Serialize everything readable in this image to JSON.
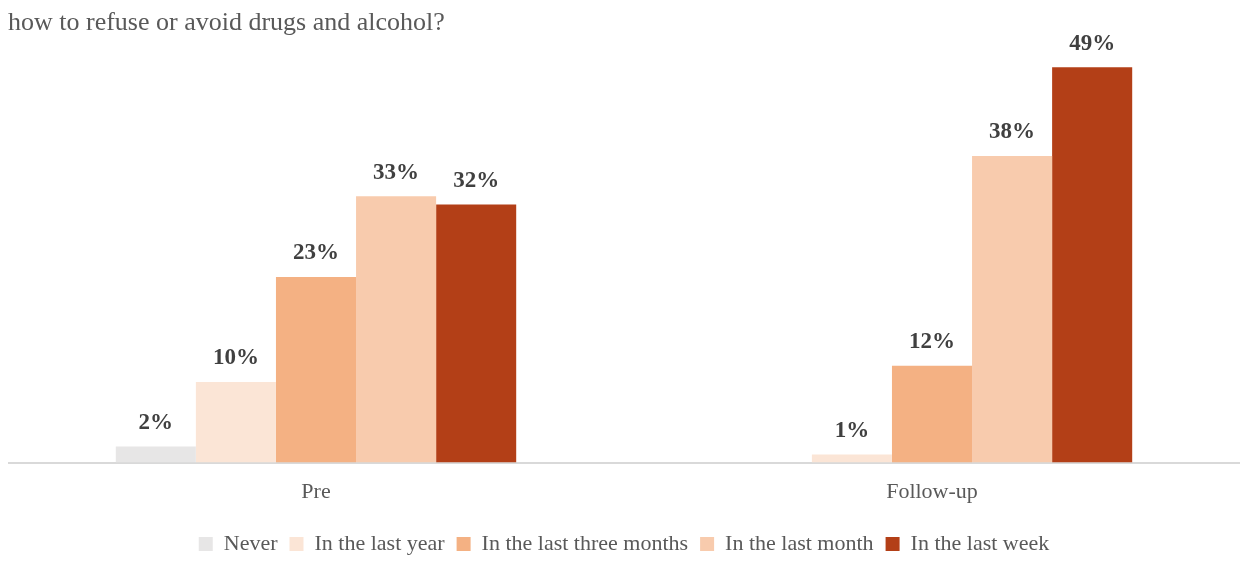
{
  "chart_data": {
    "type": "bar",
    "title": "how to refuse or avoid drugs and alcohol?",
    "categories": [
      "Pre",
      "Follow-up"
    ],
    "series": [
      {
        "name": "Never",
        "color": "#e7e6e6",
        "values": [
          2,
          null
        ],
        "value_labels": [
          "2%",
          null
        ]
      },
      {
        "name": "In the last year",
        "color": "#fbe5d6",
        "values": [
          10,
          1
        ],
        "value_labels": [
          "10%",
          "1%"
        ]
      },
      {
        "name": "In the last three months",
        "color": "#f4b183",
        "values": [
          23,
          12
        ],
        "value_labels": [
          "23%",
          "12%"
        ]
      },
      {
        "name": "In the last month",
        "color": "#f8cbad",
        "values": [
          33,
          38
        ],
        "value_labels": [
          "33%",
          "38%"
        ]
      },
      {
        "name": "In the last week",
        "color": "#b33f17",
        "values": [
          32,
          49
        ],
        "value_labels": [
          "32%",
          "49%"
        ]
      }
    ],
    "grid": false,
    "legend": "bottom"
  }
}
